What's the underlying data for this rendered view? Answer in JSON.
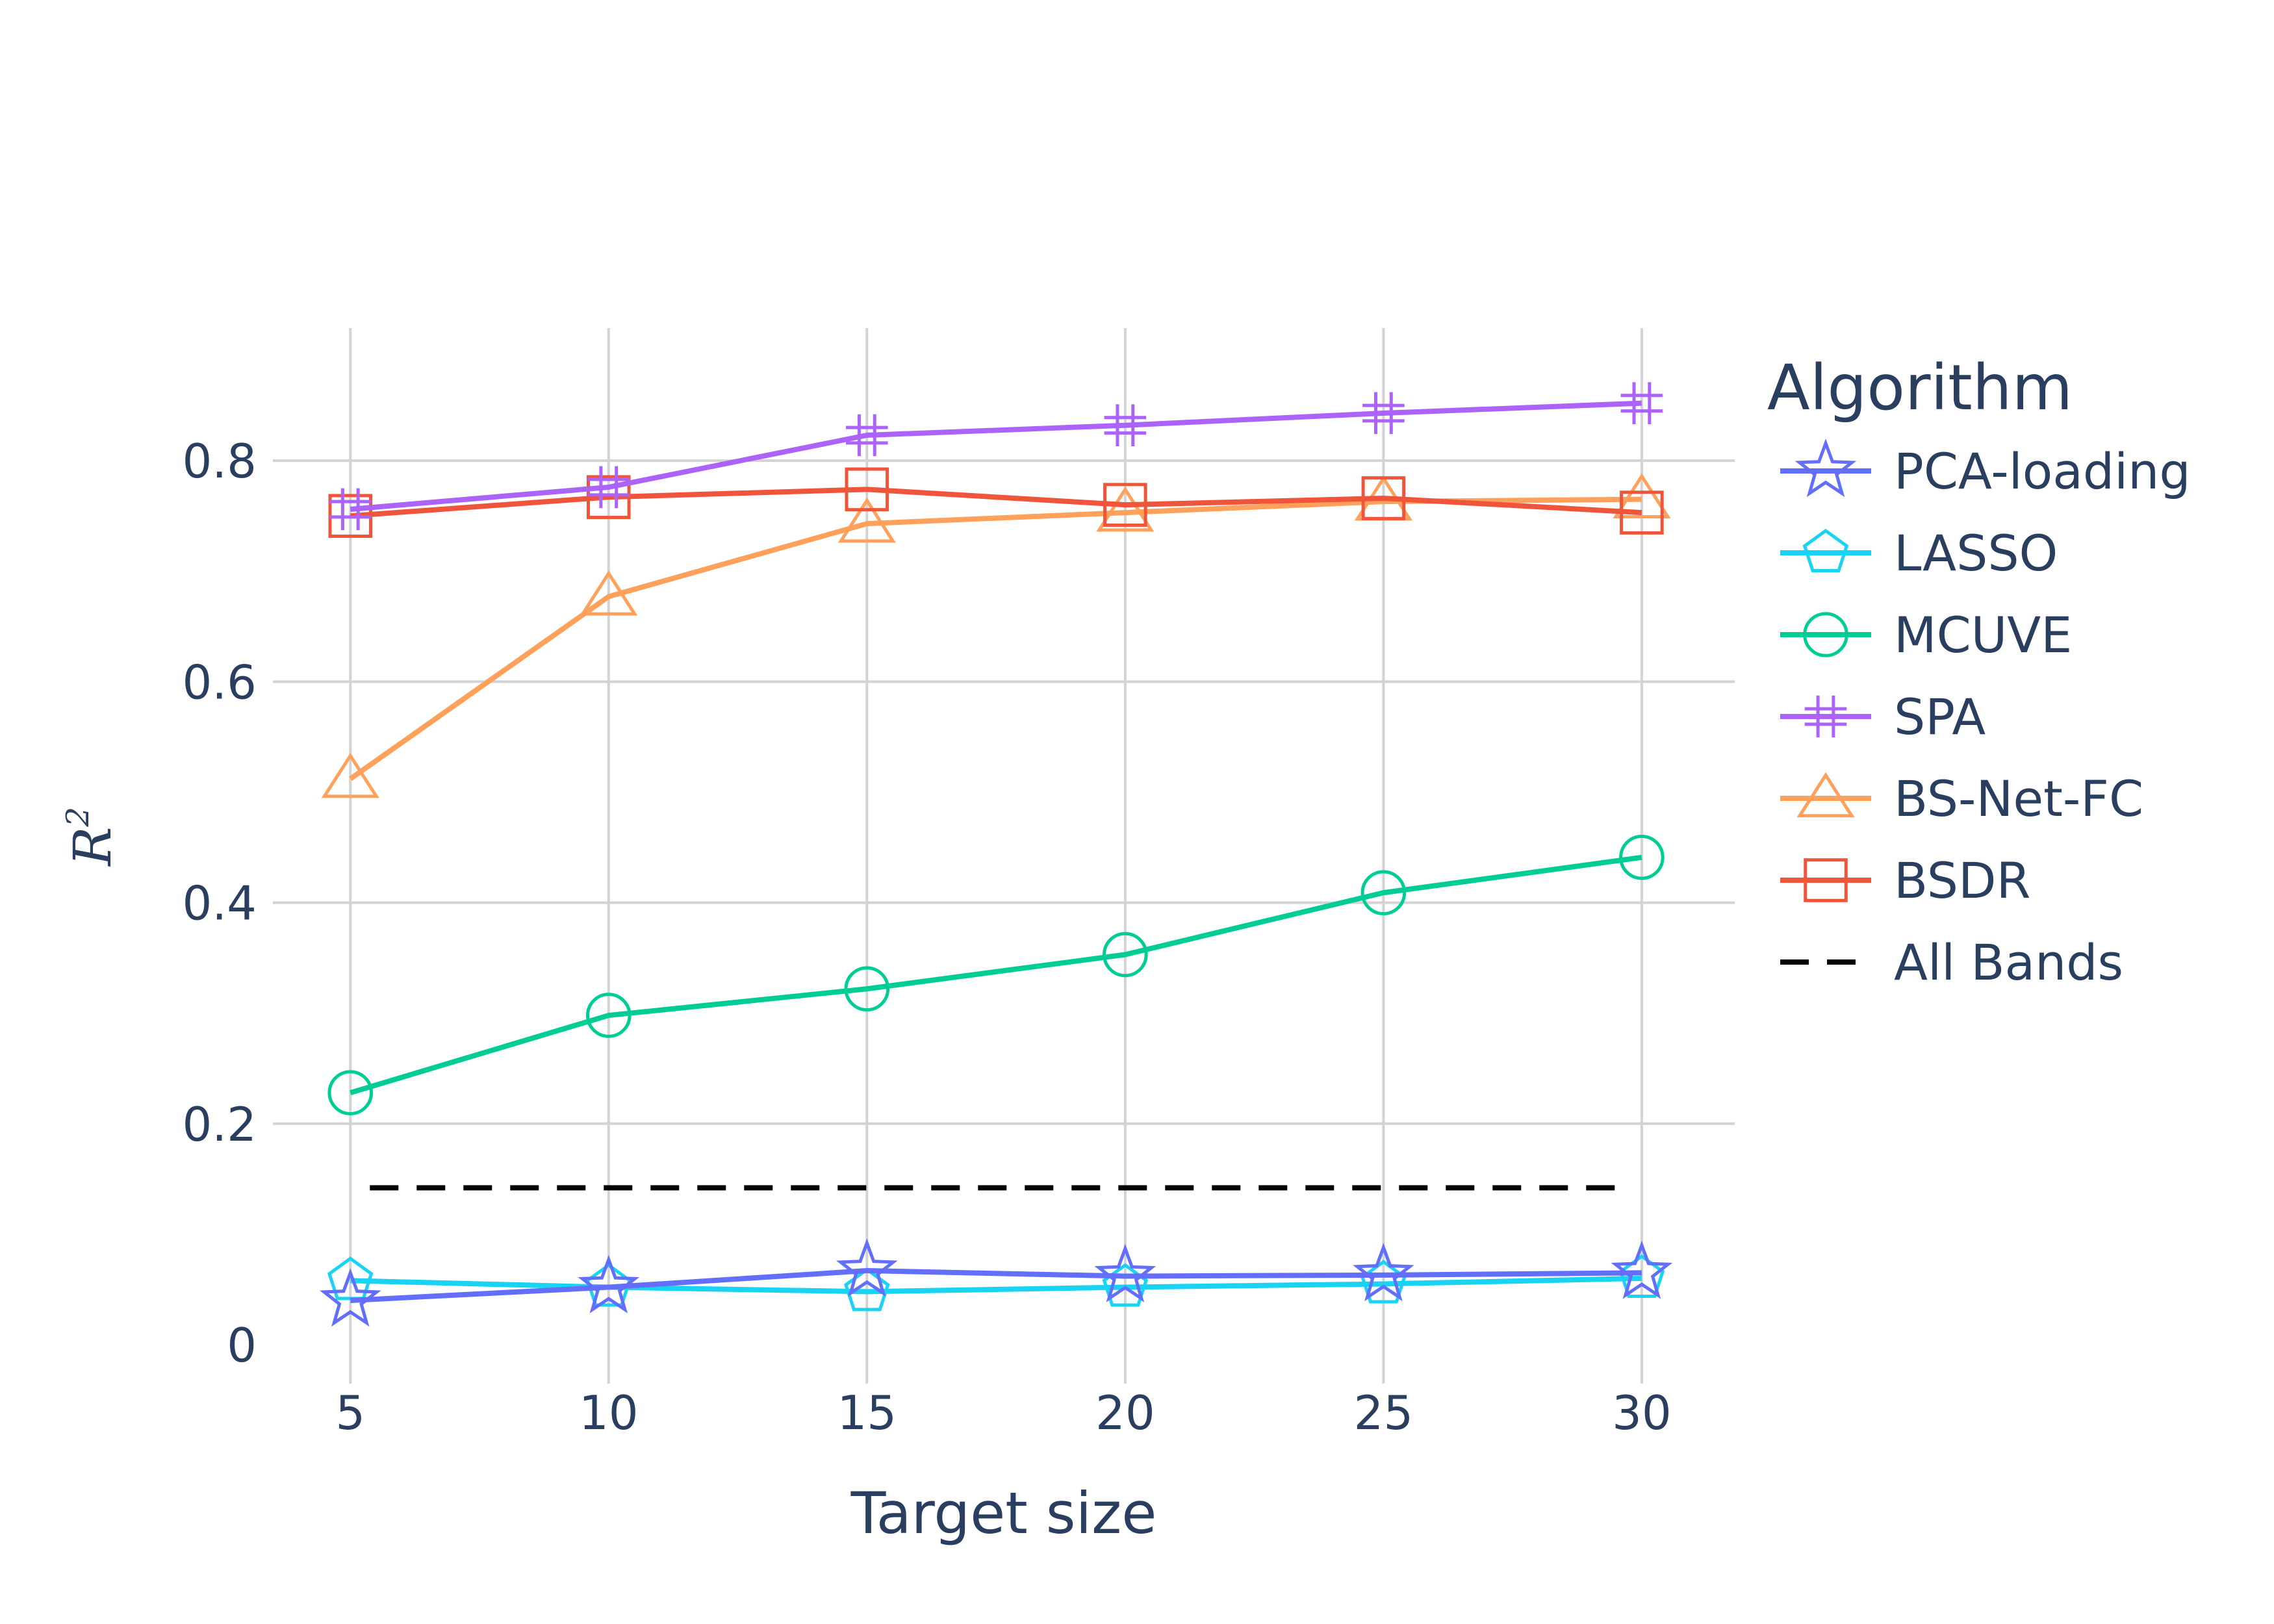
{
  "chart_data": {
    "type": "line",
    "xlabel": "Target size",
    "ylabel": "R",
    "ylabel_superscript": "2",
    "x": [
      5,
      10,
      15,
      20,
      25,
      30
    ],
    "x_ticks": [
      5,
      10,
      15,
      20,
      25,
      30
    ],
    "xlim": [
      3.5,
      31.8
    ],
    "ylim": [
      0,
      0.92
    ],
    "y_ticks": [
      0,
      0.2,
      0.4,
      0.6,
      0.8
    ],
    "y_tick_labels": [
      "0",
      "0.2",
      "0.4",
      "0.6",
      "0.8"
    ],
    "grid": true,
    "legend": {
      "title": "Algorithm",
      "placement": "right"
    },
    "series": [
      {
        "name": "PCA-loading",
        "color": "#636efa",
        "marker": "star",
        "dash": "solid",
        "values": [
          0.04,
          0.052,
          0.067,
          0.062,
          0.063,
          0.065
        ]
      },
      {
        "name": "LASSO",
        "color": "#19d3f3",
        "marker": "pentagon",
        "dash": "solid",
        "values": [
          0.058,
          0.052,
          0.048,
          0.052,
          0.055,
          0.06
        ]
      },
      {
        "name": "MCUVE",
        "color": "#00cc96",
        "marker": "circle",
        "dash": "solid",
        "values": [
          0.228,
          0.298,
          0.322,
          0.353,
          0.409,
          0.441
        ]
      },
      {
        "name": "SPA",
        "color": "#ab63fa",
        "marker": "hash",
        "dash": "solid",
        "values": [
          0.756,
          0.776,
          0.823,
          0.832,
          0.843,
          0.852
        ]
      },
      {
        "name": "BS-Net-FC",
        "color": "#ffa15a",
        "marker": "triangle",
        "dash": "solid",
        "values": [
          0.512,
          0.677,
          0.743,
          0.753,
          0.763,
          0.765
        ]
      },
      {
        "name": "BSDR",
        "color": "#ef553b",
        "marker": "square",
        "dash": "solid",
        "values": [
          0.75,
          0.767,
          0.774,
          0.76,
          0.766,
          0.753
        ]
      },
      {
        "name": "All Bands",
        "color": "#000000",
        "marker": "none",
        "dash": "dash",
        "values": [
          0.142,
          0.142,
          0.142,
          0.142,
          0.142,
          0.142
        ]
      }
    ]
  }
}
